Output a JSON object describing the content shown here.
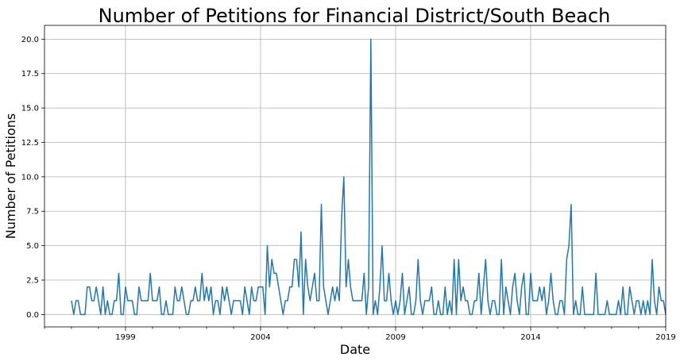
{
  "chart_data": {
    "type": "line",
    "title": "Number of Petitions for Financial District/South Beach",
    "xlabel": "Date",
    "ylabel": "Number of Petitions",
    "grid": true,
    "xlim": [
      "1996-01",
      "2019-01"
    ],
    "ylim": [
      -0.9,
      21
    ],
    "x_ticks": [
      "1999",
      "2004",
      "2009",
      "2014",
      "2019"
    ],
    "y_ticks": [
      "0.0",
      "2.5",
      "5.0",
      "7.5",
      "10.0",
      "12.5",
      "15.0",
      "17.5",
      "20.0"
    ],
    "series": [
      {
        "color": "#1f77b4",
        "start": "1997-01",
        "frequency": "monthly",
        "values": [
          1,
          0,
          1,
          1,
          0,
          0,
          0,
          2,
          2,
          1,
          1,
          2,
          1,
          0,
          2,
          0,
          1,
          0,
          0,
          1,
          1,
          3,
          0,
          0,
          2,
          1,
          1,
          1,
          0,
          0,
          2,
          1,
          1,
          1,
          1,
          3,
          1,
          1,
          1,
          2,
          0,
          0,
          1,
          0,
          0,
          0,
          2,
          1,
          1,
          2,
          1,
          0,
          0,
          1,
          1,
          2,
          1,
          1,
          3,
          1,
          2,
          1,
          2,
          0,
          1,
          1,
          0,
          2,
          1,
          2,
          1,
          0,
          1,
          1,
          1,
          1,
          0,
          2,
          1,
          0,
          2,
          1,
          1,
          2,
          2,
          2,
          0,
          5,
          2,
          4,
          3,
          3,
          2,
          1,
          0,
          1,
          1,
          2,
          2,
          4,
          4,
          2,
          6,
          0,
          4,
          2,
          1,
          2,
          3,
          1,
          1,
          8,
          2,
          1,
          0,
          1,
          2,
          1,
          2,
          1,
          7,
          10,
          2,
          4,
          2,
          1,
          1,
          1,
          1,
          1,
          3,
          0,
          2,
          20,
          0,
          1,
          0,
          2,
          5,
          1,
          1,
          3,
          1,
          0,
          1,
          0,
          1,
          3,
          0,
          1,
          2,
          0,
          0,
          1,
          4,
          1,
          0,
          1,
          1,
          1,
          2,
          0,
          0,
          1,
          0,
          0,
          2,
          0,
          1,
          0,
          4,
          0,
          4,
          1,
          2,
          1,
          1,
          0,
          0,
          1,
          1,
          3,
          0,
          2,
          4,
          1,
          0,
          1,
          1,
          0,
          0,
          4,
          0,
          2,
          1,
          0,
          2,
          3,
          1,
          0,
          2,
          3,
          0,
          0,
          3,
          1,
          1,
          1,
          2,
          1,
          2,
          0,
          1,
          3,
          1,
          0,
          0,
          1,
          1,
          0,
          4,
          5,
          8,
          0,
          1,
          0,
          0,
          2,
          0,
          0,
          0,
          0,
          0,
          3,
          0,
          0,
          0,
          0,
          1,
          0,
          0,
          0,
          0,
          1,
          0,
          2,
          0,
          0,
          2,
          1,
          0,
          1,
          1,
          0,
          1,
          0,
          1,
          0,
          4,
          1,
          0,
          2,
          1,
          1,
          0
        ]
      }
    ]
  }
}
